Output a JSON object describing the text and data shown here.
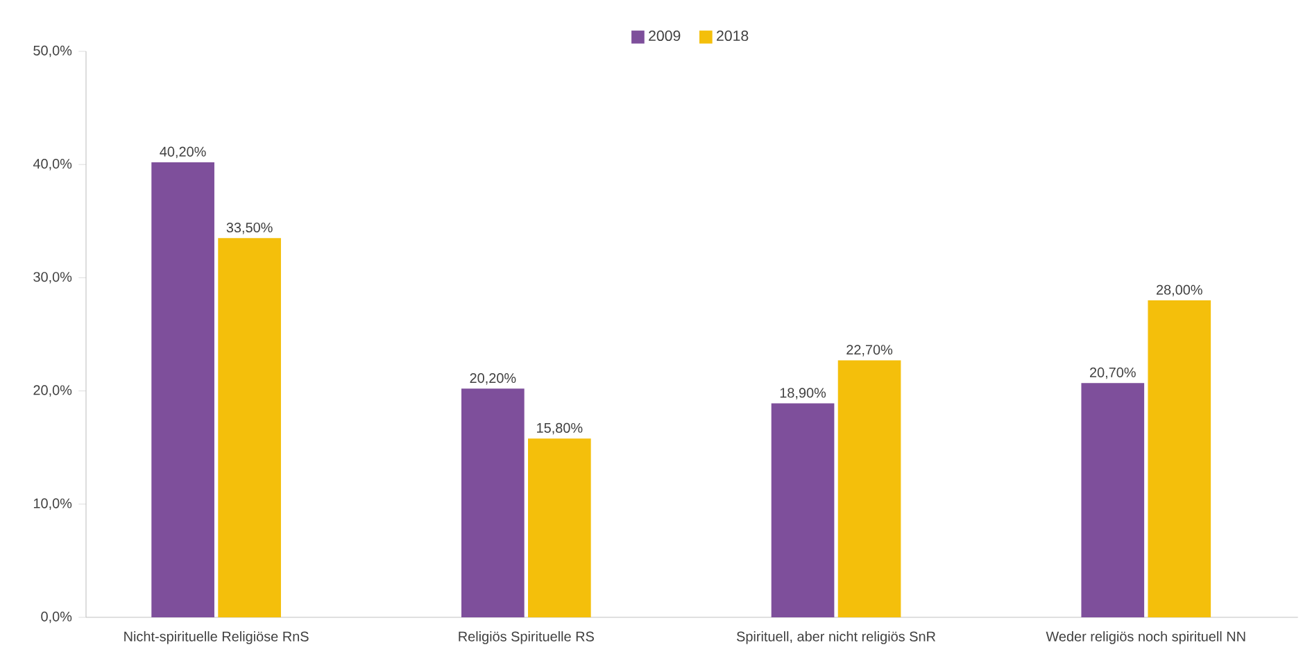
{
  "chart_data": {
    "type": "bar",
    "categories": [
      "Nicht-spirituelle Religiöse RnS",
      "Religiös Spirituelle RS",
      "Spirituell, aber nicht religiös SnR",
      "Weder religiös noch spirituell NN"
    ],
    "series": [
      {
        "name": "2009",
        "color": "#7e4f9b",
        "values": [
          40.2,
          20.2,
          18.9,
          20.7
        ],
        "value_labels": [
          "40,20%",
          "20,20%",
          "18,90%",
          "20,70%"
        ]
      },
      {
        "name": "2018",
        "color": "#f4bf0b",
        "values": [
          33.5,
          15.8,
          22.7,
          28.0
        ],
        "value_labels": [
          "33,50%",
          "15,80%",
          "22,70%",
          "28,00%"
        ]
      }
    ],
    "ylim": [
      0,
      50
    ],
    "yticks": [
      {
        "value": 0,
        "label": "0,0%"
      },
      {
        "value": 10,
        "label": "10,0%"
      },
      {
        "value": 20,
        "label": "20,0%"
      },
      {
        "value": 30,
        "label": "30,0%"
      },
      {
        "value": 40,
        "label": "40,0%"
      },
      {
        "value": 50,
        "label": "50,0%"
      }
    ],
    "legend": "top",
    "grid": false
  }
}
